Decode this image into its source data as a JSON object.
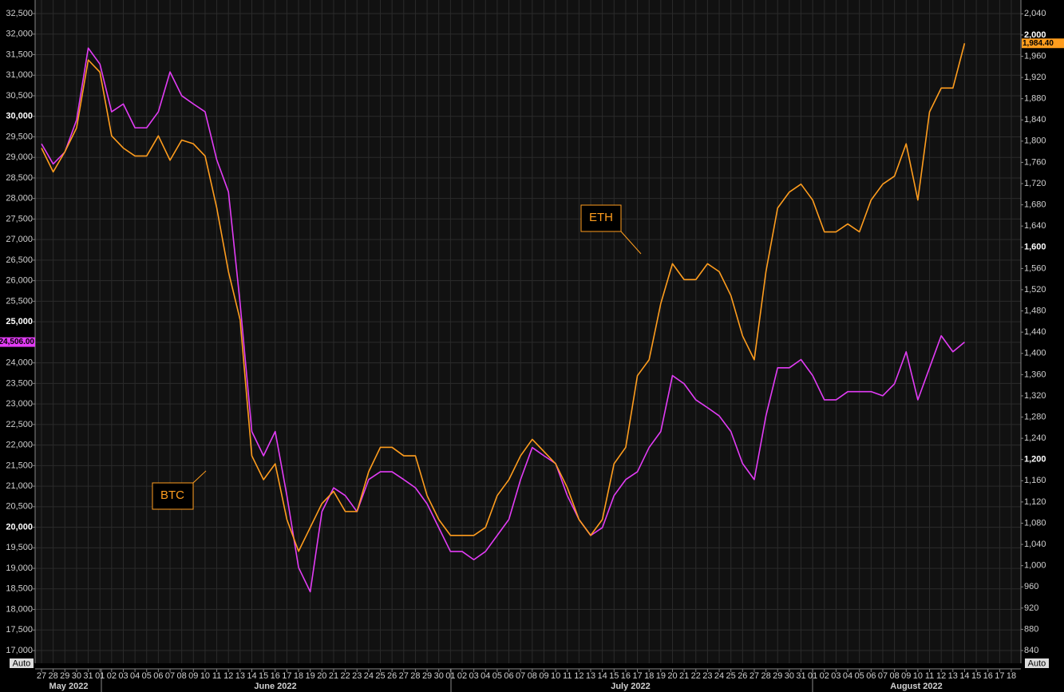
{
  "chart_data": {
    "type": "line",
    "categories": [
      "27",
      "28",
      "29",
      "30",
      "31",
      "01",
      "02",
      "03",
      "04",
      "05",
      "06",
      "07",
      "08",
      "09",
      "10",
      "11",
      "12",
      "13",
      "14",
      "15",
      "16",
      "17",
      "18",
      "19",
      "20",
      "21",
      "22",
      "23",
      "24",
      "25",
      "26",
      "27",
      "28",
      "29",
      "30",
      "01",
      "02",
      "03",
      "04",
      "05",
      "06",
      "07",
      "08",
      "09",
      "10",
      "11",
      "12",
      "13",
      "14",
      "15",
      "16",
      "17",
      "18",
      "19",
      "20",
      "21",
      "22",
      "23",
      "24",
      "25",
      "26",
      "27",
      "28",
      "29",
      "30",
      "31",
      "01",
      "02",
      "03",
      "04",
      "05",
      "06",
      "07",
      "08",
      "09",
      "10",
      "11",
      "12",
      "13",
      "14",
      "15",
      "16",
      "17",
      "18"
    ],
    "months": [
      "May 2022",
      "June 2022",
      "July 2022",
      "August 2022"
    ],
    "series": [
      {
        "name": "BTC",
        "color": "#e23cf5",
        "axis": "y",
        "last_value": 24506,
        "last_label": "24,506.00",
        "values": [
          29330,
          28840,
          29130,
          29910,
          31660,
          31270,
          30110,
          30300,
          29720,
          29720,
          30110,
          31080,
          30500,
          30300,
          30110,
          28940,
          28160,
          25440,
          22330,
          21740,
          22330,
          20770,
          19020,
          18430,
          20380,
          20960,
          20770,
          20380,
          21160,
          21350,
          21350,
          21160,
          20960,
          20570,
          19990,
          19410,
          19410,
          19210,
          19410,
          19800,
          20190,
          21160,
          21940,
          21740,
          21550,
          20770,
          20190,
          19800,
          19990,
          20770,
          21160,
          21350,
          21940,
          22330,
          23690,
          23490,
          23100,
          22910,
          22710,
          22330,
          21550,
          21160,
          22710,
          23880,
          23880,
          24080,
          23690,
          23100,
          23100,
          23300,
          23300,
          23300,
          23200,
          23490,
          24270,
          23100,
          23880,
          24660,
          24270,
          24506,
          null,
          null,
          null,
          null
        ]
      },
      {
        "name": "ETH",
        "color": "#ff9d1e",
        "axis": "y2",
        "last_value": 1984.4,
        "last_label": "1,984.40",
        "values": [
          1787,
          1742,
          1780,
          1825,
          1953,
          1930,
          1810,
          1787,
          1772,
          1772,
          1810,
          1764,
          1802,
          1795,
          1772,
          1674,
          1554,
          1463,
          1207,
          1162,
          1192,
          1087,
          1027,
          1072,
          1117,
          1140,
          1102,
          1102,
          1177,
          1223,
          1223,
          1207,
          1207,
          1132,
          1087,
          1057,
          1057,
          1057,
          1072,
          1132,
          1162,
          1207,
          1238,
          1215,
          1192,
          1147,
          1087,
          1057,
          1087,
          1192,
          1223,
          1358,
          1388,
          1494,
          1569,
          1539,
          1539,
          1569,
          1554,
          1509,
          1433,
          1388,
          1554,
          1674,
          1704,
          1719,
          1689,
          1629,
          1629,
          1644,
          1629,
          1689,
          1719,
          1734,
          1795,
          1689,
          1855,
          1900,
          1900,
          1984.4,
          null,
          null,
          null,
          null
        ]
      }
    ],
    "ylim": [
      16690,
      32830
    ],
    "yticks": [
      {
        "value": 17000,
        "label": "17,000"
      },
      {
        "value": 17500,
        "label": "17,500"
      },
      {
        "value": 18000,
        "label": "18,000"
      },
      {
        "value": 18500,
        "label": "18,500"
      },
      {
        "value": 19000,
        "label": "19,000"
      },
      {
        "value": 19500,
        "label": "19,500"
      },
      {
        "value": 20000,
        "label": "20,000"
      },
      {
        "value": 20500,
        "label": "20,500"
      },
      {
        "value": 21000,
        "label": "21,000"
      },
      {
        "value": 21500,
        "label": "21,500"
      },
      {
        "value": 22000,
        "label": "22,000"
      },
      {
        "value": 22500,
        "label": "22,500"
      },
      {
        "value": 23000,
        "label": "23,000"
      },
      {
        "value": 23500,
        "label": "23,500"
      },
      {
        "value": 24000,
        "label": "24,000"
      },
      {
        "value": 24500,
        "label": "24,500"
      },
      {
        "value": 25000,
        "label": "25,000"
      },
      {
        "value": 25500,
        "label": "25,500"
      },
      {
        "value": 26000,
        "label": "26,000"
      },
      {
        "value": 26500,
        "label": "26,500"
      },
      {
        "value": 27000,
        "label": "27,000"
      },
      {
        "value": 27500,
        "label": "27,500"
      },
      {
        "value": 28000,
        "label": "28,000"
      },
      {
        "value": 28500,
        "label": "28,500"
      },
      {
        "value": 29000,
        "label": "29,000"
      },
      {
        "value": 29500,
        "label": "29,500"
      },
      {
        "value": 30000,
        "label": "30,000"
      },
      {
        "value": 30500,
        "label": "30,500"
      },
      {
        "value": 31000,
        "label": "31,000"
      },
      {
        "value": 31500,
        "label": "31,500"
      },
      {
        "value": 32000,
        "label": "32,000"
      },
      {
        "value": 32500,
        "label": "32,500"
      }
    ],
    "y2lim": [
      816,
      2066
    ],
    "y2ticks": [
      840,
      880,
      920,
      960,
      {
        "value": 1000,
        "label": "1,000"
      },
      {
        "value": 1040,
        "label": "1,040"
      },
      {
        "value": 1080,
        "label": "1,080"
      },
      {
        "value": 1120,
        "label": "1,120"
      },
      {
        "value": 1160,
        "label": "1,160"
      },
      {
        "value": 1200,
        "label": "1,200"
      },
      {
        "value": 1240,
        "label": "1,240"
      },
      {
        "value": 1280,
        "label": "1,280"
      },
      {
        "value": 1320,
        "label": "1,320"
      },
      {
        "value": 1360,
        "label": "1,360"
      },
      {
        "value": 1400,
        "label": "1,400"
      },
      {
        "value": 1440,
        "label": "1,440"
      },
      {
        "value": 1480,
        "label": "1,480"
      },
      {
        "value": 1520,
        "label": "1,520"
      },
      {
        "value": 1560,
        "label": "1,560"
      },
      {
        "value": 1600,
        "label": "1,600"
      },
      {
        "value": 1640,
        "label": "1,640"
      },
      {
        "value": 1680,
        "label": "1,680"
      },
      {
        "value": 1720,
        "label": "1,720"
      },
      {
        "value": 1760,
        "label": "1,760"
      },
      {
        "value": 1800,
        "label": "1,800"
      },
      {
        "value": 1840,
        "label": "1,840"
      },
      {
        "value": 1880,
        "label": "1,880"
      },
      {
        "value": 1920,
        "label": "1,920"
      },
      {
        "value": 1960,
        "label": "1,960"
      },
      {
        "value": 2000,
        "label": "2,000"
      },
      {
        "value": 2040,
        "label": "2,040"
      }
    ],
    "grid": true
  },
  "controls": {
    "left_scale": "Auto",
    "right_scale": "Auto"
  }
}
